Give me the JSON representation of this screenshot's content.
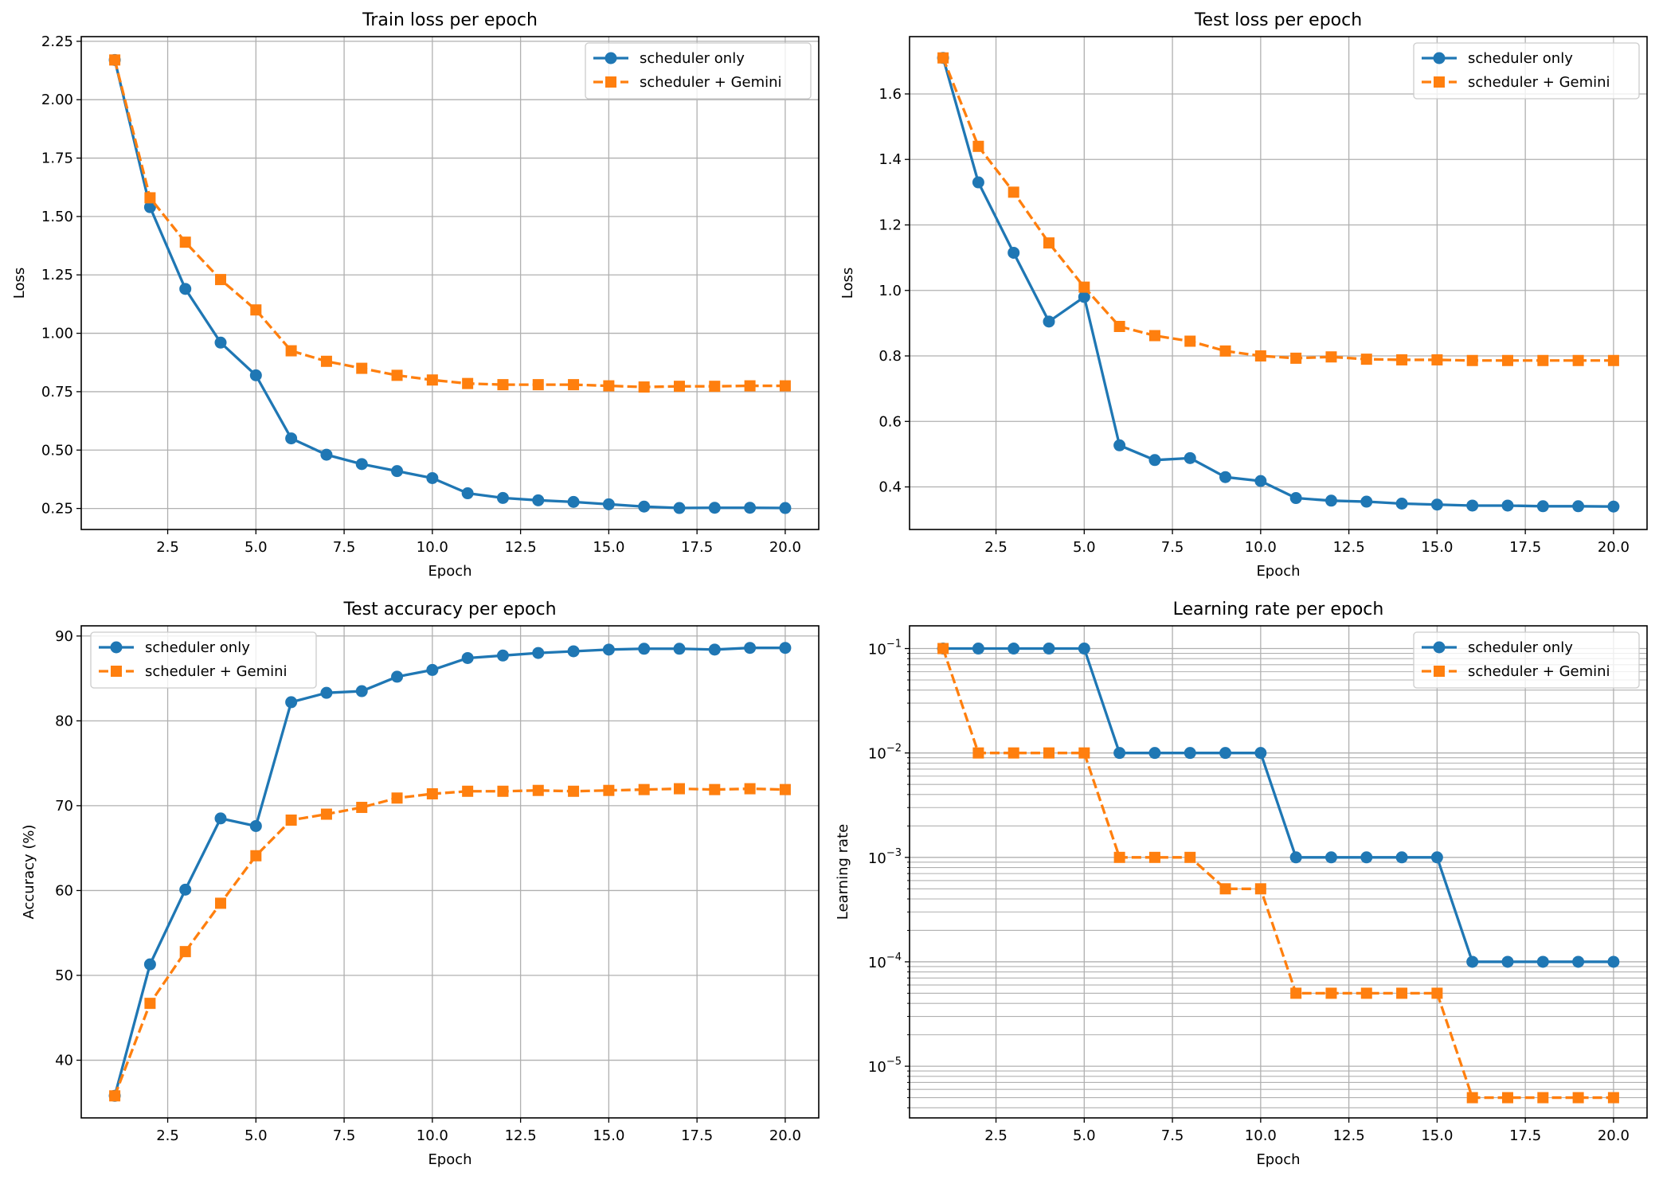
{
  "colors": {
    "series1": "#1f77b4",
    "series2": "#ff7f0e",
    "grid": "#b0b0b0"
  },
  "chart_data": [
    {
      "type": "line",
      "title": "Train loss per epoch",
      "xlabel": "Epoch",
      "ylabel": "Loss",
      "xlim": [
        0.05,
        20.95
      ],
      "ylim": [
        0.16,
        2.27
      ],
      "yscale": "linear",
      "xticks": [
        2.5,
        5.0,
        7.5,
        10.0,
        12.5,
        15.0,
        17.5,
        20.0
      ],
      "xtick_labels": [
        "2.5",
        "5.0",
        "7.5",
        "10.0",
        "12.5",
        "15.0",
        "17.5",
        "20.0"
      ],
      "yticks": [
        0.25,
        0.5,
        0.75,
        1.0,
        1.25,
        1.5,
        1.75,
        2.0,
        2.25
      ],
      "ytick_labels": [
        "0.25",
        "0.50",
        "0.75",
        "1.00",
        "1.25",
        "1.50",
        "1.75",
        "2.00",
        "2.25"
      ],
      "grid": true,
      "legend": "upper-right",
      "x": [
        1,
        2,
        3,
        4,
        5,
        6,
        7,
        8,
        9,
        10,
        11,
        12,
        13,
        14,
        15,
        16,
        17,
        18,
        19,
        20
      ],
      "series": [
        {
          "name": "scheduler only",
          "marker": "circle",
          "style": "solid",
          "values": [
            2.17,
            1.54,
            1.19,
            0.96,
            0.82,
            0.55,
            0.48,
            0.44,
            0.41,
            0.38,
            0.315,
            0.295,
            0.285,
            0.278,
            0.268,
            0.258,
            0.252,
            0.253,
            0.253,
            0.252
          ]
        },
        {
          "name": "scheduler + Gemini",
          "marker": "square",
          "style": "dashed",
          "values": [
            2.17,
            1.58,
            1.39,
            1.23,
            1.1,
            0.925,
            0.88,
            0.85,
            0.82,
            0.8,
            0.785,
            0.78,
            0.78,
            0.78,
            0.775,
            0.77,
            0.773,
            0.773,
            0.775,
            0.775
          ]
        }
      ]
    },
    {
      "type": "line",
      "title": "Test loss per epoch",
      "xlabel": "Epoch",
      "ylabel": "Loss",
      "xlim": [
        0.05,
        20.95
      ],
      "ylim": [
        0.27,
        1.775
      ],
      "yscale": "linear",
      "xticks": [
        2.5,
        5.0,
        7.5,
        10.0,
        12.5,
        15.0,
        17.5,
        20.0
      ],
      "xtick_labels": [
        "2.5",
        "5.0",
        "7.5",
        "10.0",
        "12.5",
        "15.0",
        "17.5",
        "20.0"
      ],
      "yticks": [
        0.4,
        0.6,
        0.8,
        1.0,
        1.2,
        1.4,
        1.6
      ],
      "ytick_labels": [
        "0.4",
        "0.6",
        "0.8",
        "1.0",
        "1.2",
        "1.4",
        "1.6"
      ],
      "grid": true,
      "legend": "upper-right",
      "x": [
        1,
        2,
        3,
        4,
        5,
        6,
        7,
        8,
        9,
        10,
        11,
        12,
        13,
        14,
        15,
        16,
        17,
        18,
        19,
        20
      ],
      "series": [
        {
          "name": "scheduler only",
          "marker": "circle",
          "style": "solid",
          "values": [
            1.71,
            1.33,
            1.115,
            0.905,
            0.98,
            0.527,
            0.482,
            0.488,
            0.43,
            0.418,
            0.366,
            0.358,
            0.355,
            0.349,
            0.346,
            0.343,
            0.343,
            0.341,
            0.341,
            0.34
          ]
        },
        {
          "name": "scheduler + Gemini",
          "marker": "square",
          "style": "dashed",
          "values": [
            1.71,
            1.44,
            1.3,
            1.145,
            1.01,
            0.89,
            0.862,
            0.845,
            0.815,
            0.8,
            0.793,
            0.797,
            0.79,
            0.788,
            0.788,
            0.786,
            0.786,
            0.786,
            0.786,
            0.786
          ]
        }
      ]
    },
    {
      "type": "line",
      "title": "Test accuracy per epoch",
      "xlabel": "Epoch",
      "ylabel": "Accuracy (%)",
      "xlim": [
        0.05,
        20.95
      ],
      "ylim": [
        33.2,
        91.2
      ],
      "yscale": "linear",
      "xticks": [
        2.5,
        5.0,
        7.5,
        10.0,
        12.5,
        15.0,
        17.5,
        20.0
      ],
      "xtick_labels": [
        "2.5",
        "5.0",
        "7.5",
        "10.0",
        "12.5",
        "15.0",
        "17.5",
        "20.0"
      ],
      "yticks": [
        40,
        50,
        60,
        70,
        80,
        90
      ],
      "ytick_labels": [
        "40",
        "50",
        "60",
        "70",
        "80",
        "90"
      ],
      "grid": true,
      "legend": "upper-left",
      "x": [
        1,
        2,
        3,
        4,
        5,
        6,
        7,
        8,
        9,
        10,
        11,
        12,
        13,
        14,
        15,
        16,
        17,
        18,
        19,
        20
      ],
      "series": [
        {
          "name": "scheduler only",
          "marker": "circle",
          "style": "solid",
          "values": [
            35.8,
            51.3,
            60.1,
            68.5,
            67.6,
            82.2,
            83.3,
            83.5,
            85.2,
            86.0,
            87.4,
            87.7,
            88.0,
            88.2,
            88.4,
            88.5,
            88.5,
            88.4,
            88.6,
            88.6
          ]
        },
        {
          "name": "scheduler + Gemini",
          "marker": "square",
          "style": "dashed",
          "values": [
            35.8,
            46.7,
            52.8,
            58.5,
            64.1,
            68.3,
            69.0,
            69.8,
            70.9,
            71.4,
            71.7,
            71.7,
            71.8,
            71.7,
            71.8,
            71.9,
            72.0,
            71.9,
            72.0,
            71.9
          ]
        }
      ]
    },
    {
      "type": "line",
      "title": "Learning rate per epoch",
      "xlabel": "Epoch",
      "ylabel": "Learning rate",
      "xlim": [
        0.05,
        20.95
      ],
      "ylim": [
        3.2e-06,
        0.165
      ],
      "yscale": "log",
      "xticks": [
        2.5,
        5.0,
        7.5,
        10.0,
        12.5,
        15.0,
        17.5,
        20.0
      ],
      "xtick_labels": [
        "2.5",
        "5.0",
        "7.5",
        "10.0",
        "12.5",
        "15.0",
        "17.5",
        "20.0"
      ],
      "yticks": [
        1e-05,
        0.0001,
        0.001,
        0.01,
        0.1
      ],
      "ytick_labels": [
        "10^-5",
        "10^-4",
        "10^-3",
        "10^-2",
        "10^-1"
      ],
      "grid": true,
      "grid_minor": true,
      "legend": "upper-right",
      "x": [
        1,
        2,
        3,
        4,
        5,
        6,
        7,
        8,
        9,
        10,
        11,
        12,
        13,
        14,
        15,
        16,
        17,
        18,
        19,
        20
      ],
      "series": [
        {
          "name": "scheduler only",
          "marker": "circle",
          "style": "solid",
          "values": [
            0.1,
            0.1,
            0.1,
            0.1,
            0.1,
            0.01,
            0.01,
            0.01,
            0.01,
            0.01,
            0.001,
            0.001,
            0.001,
            0.001,
            0.001,
            0.0001,
            0.0001,
            0.0001,
            0.0001,
            0.0001
          ]
        },
        {
          "name": "scheduler + Gemini",
          "marker": "square",
          "style": "dashed",
          "values": [
            0.1,
            0.01,
            0.01,
            0.01,
            0.01,
            0.001,
            0.001,
            0.001,
            0.0005,
            0.0005,
            5e-05,
            5e-05,
            5e-05,
            5e-05,
            5e-05,
            5e-06,
            5e-06,
            5e-06,
            5e-06,
            5e-06
          ]
        }
      ]
    }
  ]
}
